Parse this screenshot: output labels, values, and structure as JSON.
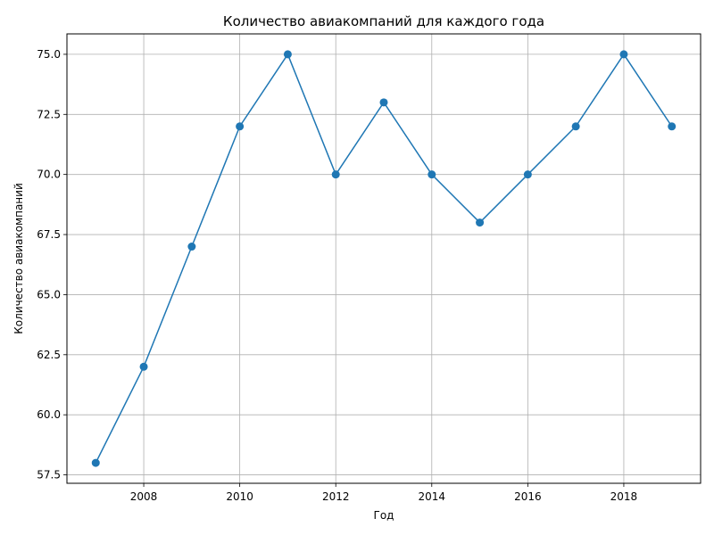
{
  "chart_data": {
    "type": "line",
    "title": "Количество авиакомпаний для каждого года",
    "xlabel": "Год",
    "ylabel": "Количество авиакомпаний",
    "x": [
      2007,
      2008,
      2009,
      2010,
      2011,
      2012,
      2013,
      2014,
      2015,
      2016,
      2017,
      2018,
      2019
    ],
    "series": [
      {
        "values": [
          58,
          62,
          67,
          72,
          75,
          70,
          73,
          70,
          68,
          70,
          72,
          75,
          72
        ]
      }
    ],
    "xlim": [
      2006.4,
      2019.6
    ],
    "ylim": [
      57.15,
      75.85
    ],
    "xticks": [
      2008,
      2010,
      2012,
      2014,
      2016,
      2018
    ],
    "xtick_labels": [
      "2008",
      "2010",
      "2012",
      "2014",
      "2016",
      "2018"
    ],
    "yticks": [
      57.5,
      60.0,
      62.5,
      65.0,
      67.5,
      70.0,
      72.5,
      75.0
    ],
    "ytick_labels": [
      "57.5",
      "60.0",
      "62.5",
      "65.0",
      "67.5",
      "70.0",
      "72.5",
      "75.0"
    ],
    "grid": true,
    "markers": "circle",
    "colors": {
      "line": "#1f77b4",
      "grid": "#b0b0b0",
      "axes": "#000000"
    }
  }
}
